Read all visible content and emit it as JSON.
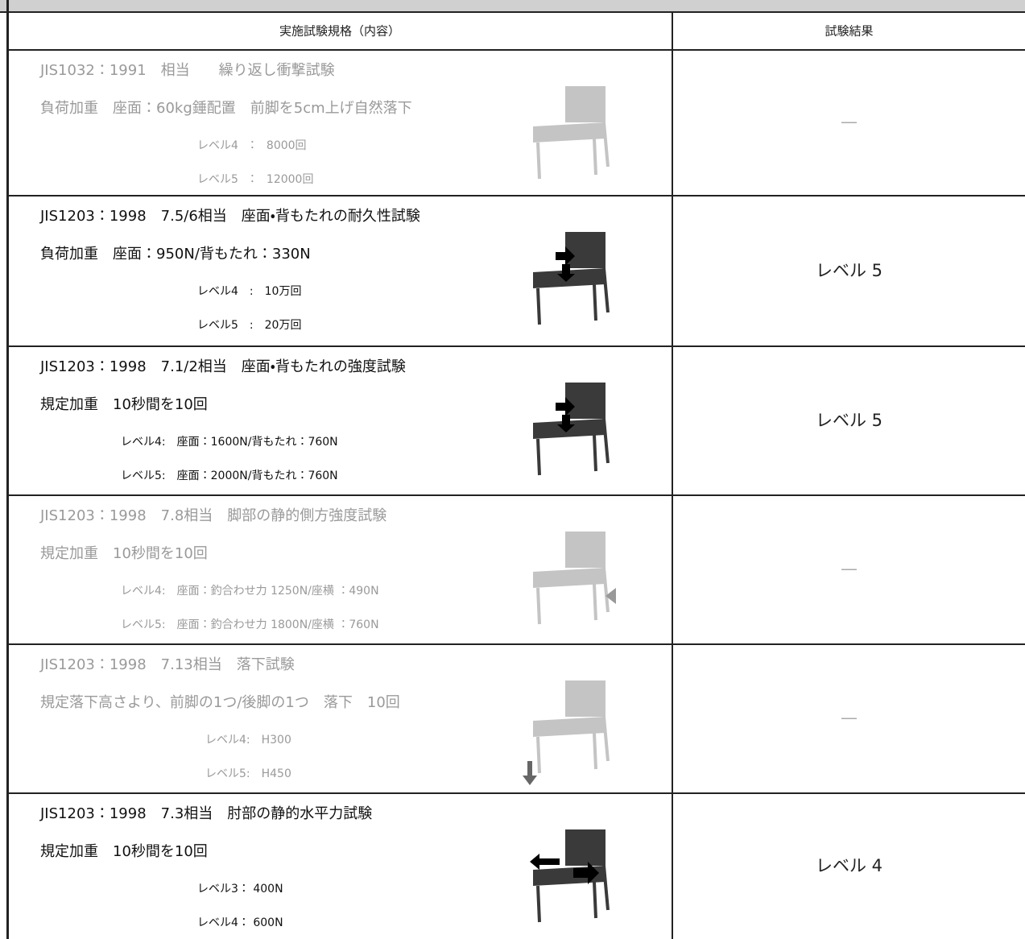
{
  "table": {
    "header": [
      "実施試験規格（内容）",
      "試験結果"
    ],
    "rows": [
      {
        "color": "#9a9a9a",
        "lines": [
          "JIS1032：1991　相当　　繰り返し衝撃試験",
          "負荷加重　座面：60kg錘配置　前脚を5cm上げ自然落下",
          "レベル4　：　8000回",
          "レベル5　：　12000回"
        ],
        "result": "—"
      },
      {
        "color": "#111111",
        "lines": [
          "JIS1203：1998　7.5/6相当　座面・背もたれの耐久性試験",
          "負荷加重　座面：950N/背もたれ：330N",
          "レベル4　:　10万回",
          "レベル5　:　20万回"
        ],
        "result": "レベル 5"
      },
      {
        "color": "#111111",
        "lines": [
          "JIS1203：1998　7.1/2相当　座面・背もたれの強度試験",
          "規定加重　10秒間を10回",
          "レベル4:　座面：1600N/背もたれ：760N",
          "レベル5:　座面：2000N/背もたれ：760N"
        ],
        "result": "レベル 5"
      },
      {
        "color": "#9a9a9a",
        "lines": [
          "JIS1203：1998　7.8相当　脚部の静的側方強度試験",
          "規定加重　10秒間を10回",
          "レベル4:　座面：釣合わせ力 1250N/座横 ：490N",
          "レベル5:　座面：釣合わせ力 1800N/座横 ：760N"
        ],
        "result": "—"
      },
      {
        "color": "#9a9a9a",
        "lines": [
          "JIS1203：1998　7.13相当　落下試験",
          "規定落下高さより、前脚の1つ/後脚の1つ　落下　10回",
          "レベル4:　H300",
          "レベル5:　H450"
        ],
        "result": "—"
      },
      {
        "color": "#111111",
        "lines": [
          "JIS1203：1998　7.3相当　肘部の静的水平力試験",
          "規定加重　10秒間を10回",
          "レベル3：  400N",
          "レベル4：  600N"
        ],
        "result": "レベル 4"
      }
    ]
  }
}
